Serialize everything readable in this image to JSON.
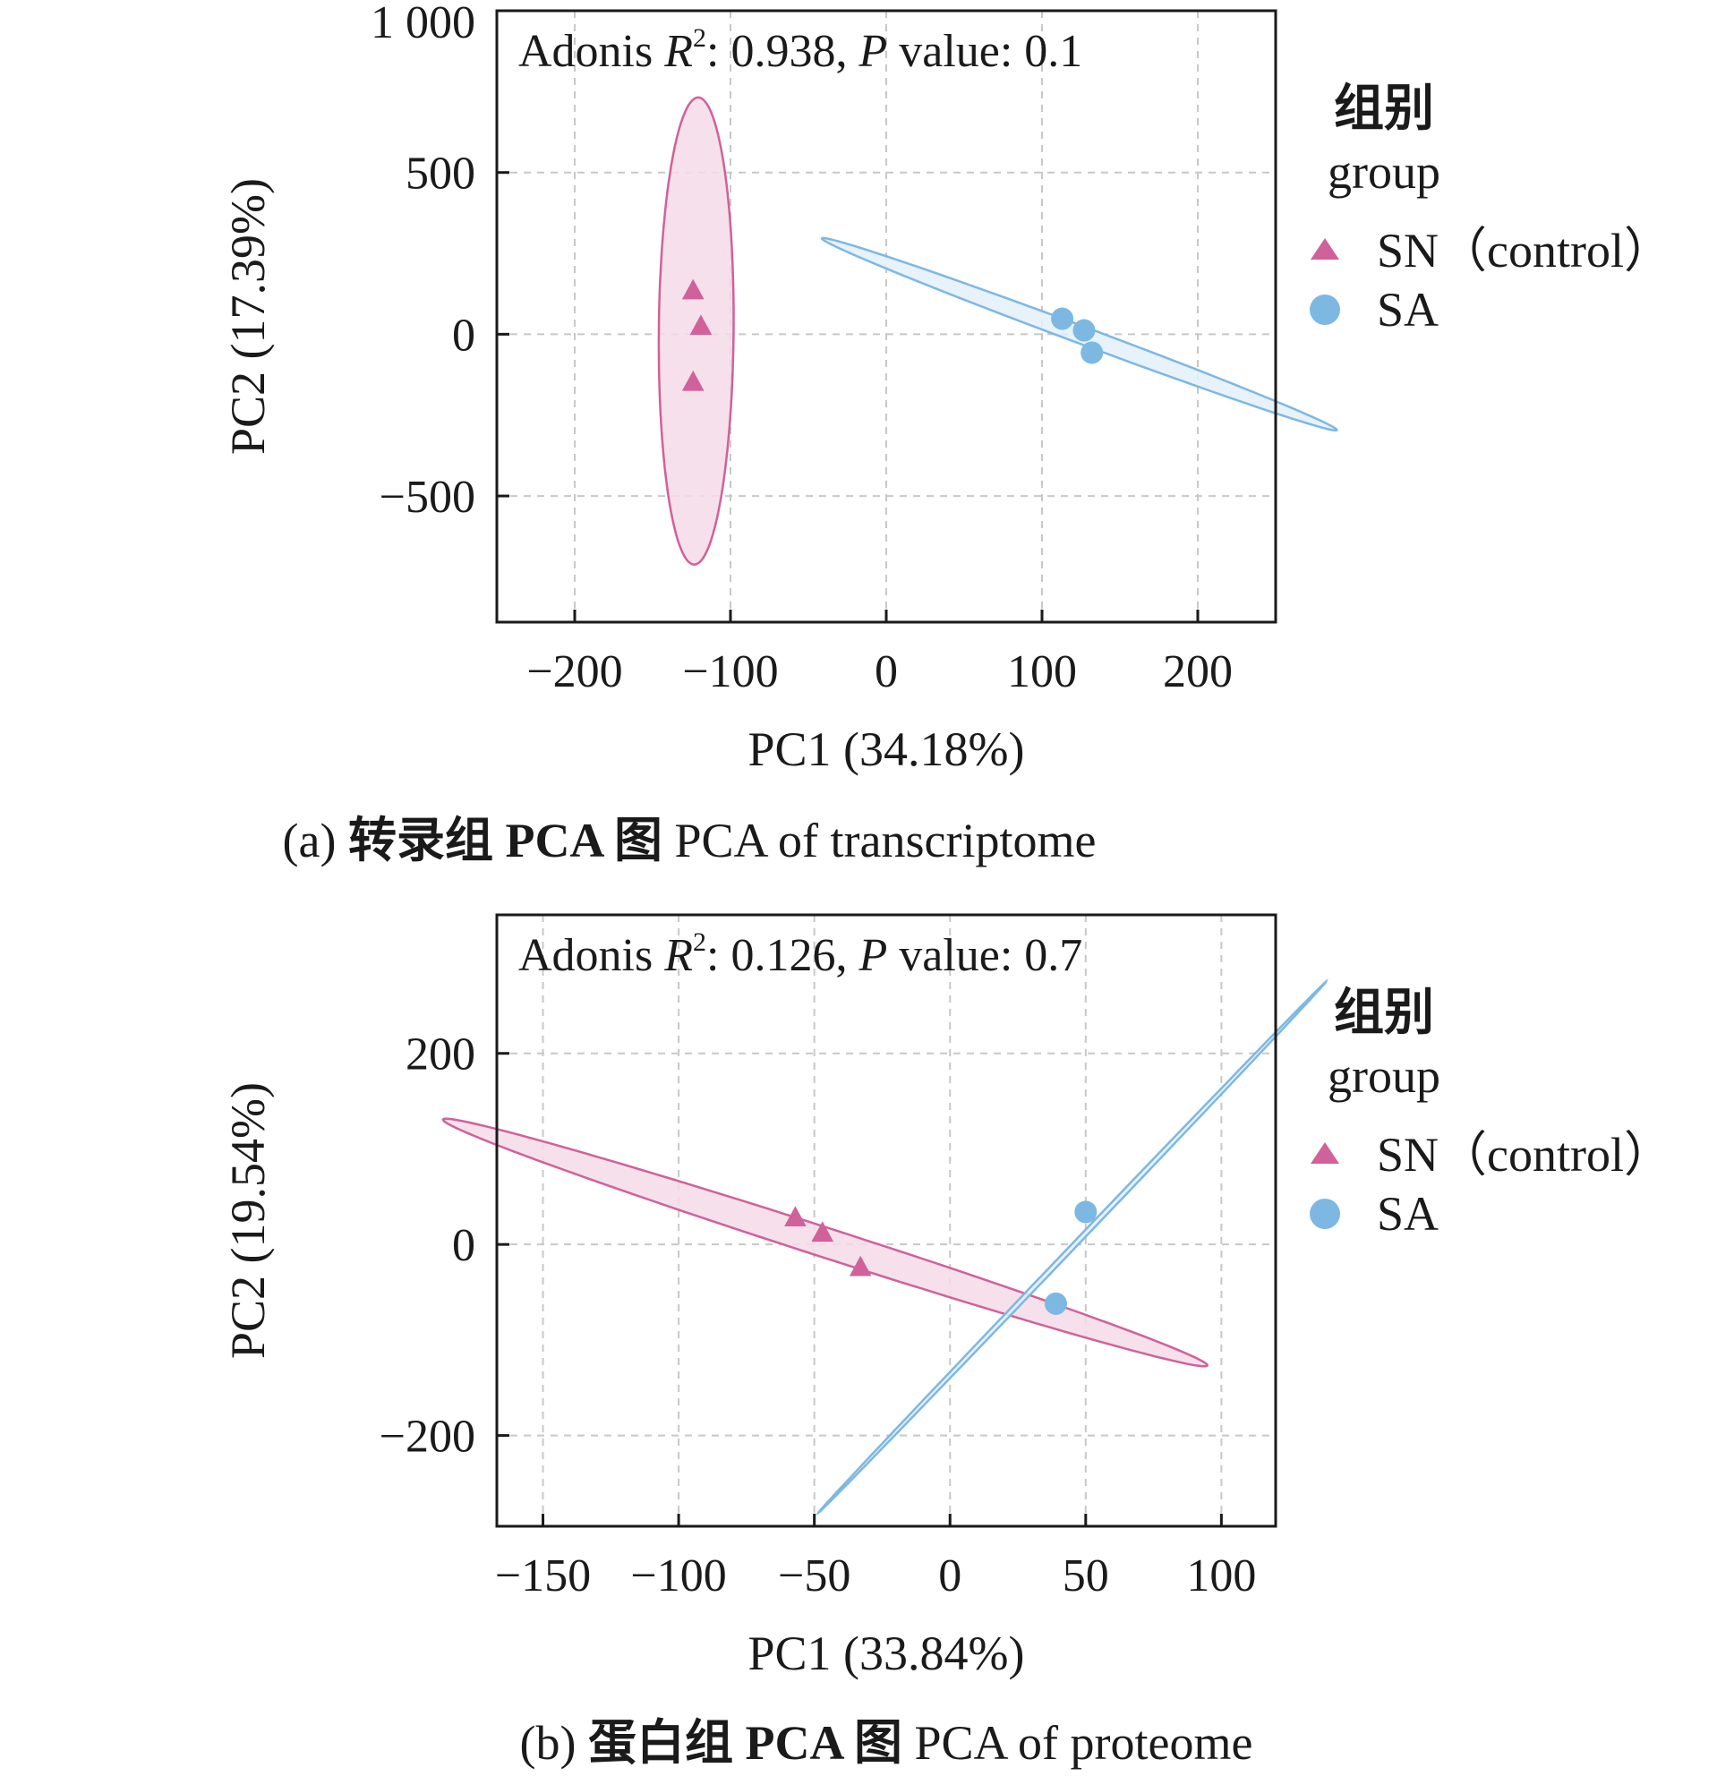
{
  "chart_data": [
    {
      "type": "scatter",
      "annotation": {
        "prefix": "Adonis ",
        "r": "R",
        "sup": "2",
        "rest": ": 0.938, ",
        "p": "P",
        "tail": " value: 0.1"
      },
      "xlabel": "PC1 (34.18%)",
      "ylabel": "PC2 (17.39%)",
      "xlim": [
        -250,
        250
      ],
      "ylim": [
        -890,
        1000
      ],
      "xticks": [
        -200,
        -100,
        0,
        100,
        200
      ],
      "xtick_labels": [
        "−200",
        "−100",
        "0",
        "100",
        "200"
      ],
      "yticks": [
        -500,
        0,
        500,
        1000
      ],
      "ytick_labels": [
        "−500",
        "0",
        "500",
        "1 000"
      ],
      "legend": {
        "title_zh": "组别",
        "title_en": "group",
        "position": "right"
      },
      "series": [
        {
          "name": "SN（control）",
          "marker": "triangle",
          "color": "#d0619a",
          "fill": "#f5dbe8",
          "points": [
            [
              -124,
              135
            ],
            [
              -119,
              25
            ],
            [
              -124,
              -148
            ]
          ],
          "ellipse": {
            "cx": -122,
            "cy": 10,
            "a": 722,
            "b": 24,
            "angle_deg": 89.9
          }
        },
        {
          "name": "SA",
          "marker": "circle",
          "color": "#7db8e3",
          "fill": "#e3f0f9",
          "points": [
            [
              113,
              48
            ],
            [
              127,
              12
            ],
            [
              132,
              -57
            ]
          ],
          "ellipse": {
            "cx": 124,
            "cy": 0,
            "a": 340,
            "b": 14,
            "angle_deg": -61
          }
        }
      ],
      "caption": {
        "label": "(a)",
        "zh": "转录组 PCA 图",
        "en": "PCA of transcriptome"
      }
    },
    {
      "type": "scatter",
      "annotation": {
        "prefix": "Adonis ",
        "r": "R",
        "sup": "2",
        "rest": ": 0.126, ",
        "p": "P",
        "tail": " value: 0.7"
      },
      "xlabel": "PC1 (33.84%)",
      "ylabel": "PC2 (19.54%)",
      "xlim": [
        -167,
        120
      ],
      "ylim": [
        -295,
        345
      ],
      "xticks": [
        -150,
        -100,
        -50,
        0,
        50,
        100
      ],
      "xtick_labels": [
        "−150",
        "−100",
        "−50",
        "0",
        "50",
        "100"
      ],
      "yticks": [
        -200,
        0,
        200
      ],
      "ytick_labels": [
        "−200",
        "0",
        "200"
      ],
      "legend": {
        "title_zh": "组别",
        "title_en": "group",
        "position": "right"
      },
      "series": [
        {
          "name": "SN（control）",
          "marker": "triangle",
          "color": "#d0619a",
          "fill": "#f5dbe8",
          "points": [
            [
              -57,
              28
            ],
            [
              -47,
              12
            ],
            [
              -33,
              -24
            ]
          ],
          "ellipse": {
            "cx": -46,
            "cy": 2,
            "a": 191,
            "b": 12,
            "angle_deg": -42.6
          }
        },
        {
          "name": "SA",
          "marker": "circle",
          "color": "#7db8e3",
          "fill": "#e3f0f9",
          "points": [
            [
              50,
              34
            ],
            [
              39,
              -62
            ]
          ],
          "ellipse": {
            "cx": 45,
            "cy": -3,
            "a": 293,
            "b": 1.2,
            "angle_deg": 71.4
          }
        }
      ],
      "caption": {
        "label": "(b)",
        "zh": "蛋白组 PCA 图",
        "en": "PCA of proteome"
      }
    }
  ]
}
